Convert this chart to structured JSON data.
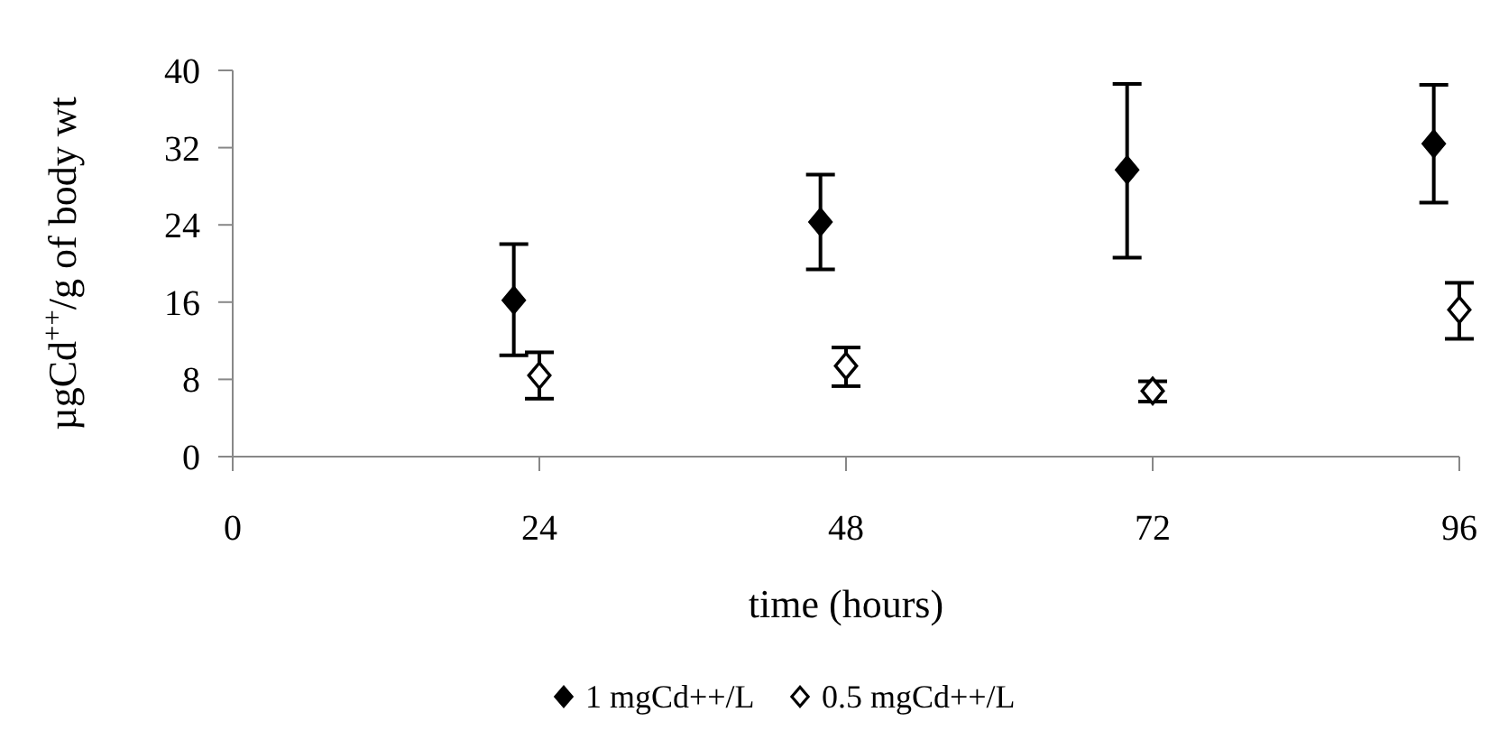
{
  "chart_data": {
    "type": "scatter",
    "xlabel": "time (hours)",
    "ylabel": "µgCd$^{++}$/g of body wt",
    "xlim": [
      0,
      96
    ],
    "xticks": [
      0,
      24,
      48,
      72,
      96
    ],
    "ylim": [
      0,
      40
    ],
    "yticks": [
      0,
      8,
      16,
      24,
      32,
      40
    ],
    "marker": "diamond",
    "legend": "bottom",
    "grid": false,
    "series": [
      {
        "name": "1 mgCd++/L",
        "color": "#000000",
        "x": [
          22,
          46,
          70,
          94
        ],
        "values": [
          16.2,
          24.3,
          29.7,
          32.4
        ],
        "errors": [
          [
            10.5,
            22
          ],
          [
            19.4,
            29.2
          ],
          [
            20.6,
            38.6
          ],
          [
            26.3,
            38.5
          ]
        ]
      },
      {
        "name": "0.5 mgCd++/L",
        "color": "#ffffff",
        "x": [
          24,
          48,
          72,
          96
        ],
        "values": [
          8.4,
          9.4,
          6.8,
          15.2
        ],
        "errors": [
          [
            6,
            10.8
          ],
          [
            7.3,
            11.3
          ],
          [
            5.7,
            7.8
          ],
          [
            12.2,
            18
          ]
        ]
      }
    ]
  }
}
